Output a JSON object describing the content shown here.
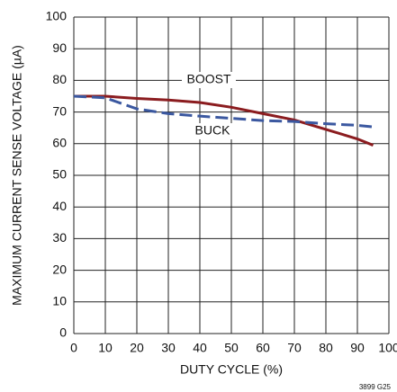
{
  "chart_data": {
    "type": "line",
    "x_label": "DUTY CYCLE (%)",
    "y_label": "MAXIMUM CURRENT SENSE VOLTAGE (µA)",
    "x": [
      0,
      10,
      20,
      30,
      40,
      50,
      60,
      70,
      80,
      90,
      95
    ],
    "series": [
      {
        "name": "BOOST",
        "color": "#8b1c1f",
        "dash": false,
        "values": [
          75,
          75,
          74.3,
          73.8,
          73,
          71.5,
          69.5,
          67.5,
          64.5,
          61.5,
          59.5
        ]
      },
      {
        "name": "BUCK",
        "color": "#3b58a0",
        "dash": true,
        "values": [
          75,
          74.5,
          71,
          69.5,
          68.7,
          68,
          67.3,
          67,
          66.3,
          65.8,
          65.3
        ]
      }
    ],
    "xlim": [
      0,
      100
    ],
    "xticks": [
      0,
      10,
      20,
      30,
      40,
      50,
      60,
      70,
      80,
      90,
      100
    ],
    "ylim": [
      0,
      100
    ],
    "yticks": [
      0,
      10,
      20,
      30,
      40,
      50,
      60,
      70,
      80,
      90,
      100
    ],
    "grid": true,
    "figure_id": "3899 G25"
  }
}
